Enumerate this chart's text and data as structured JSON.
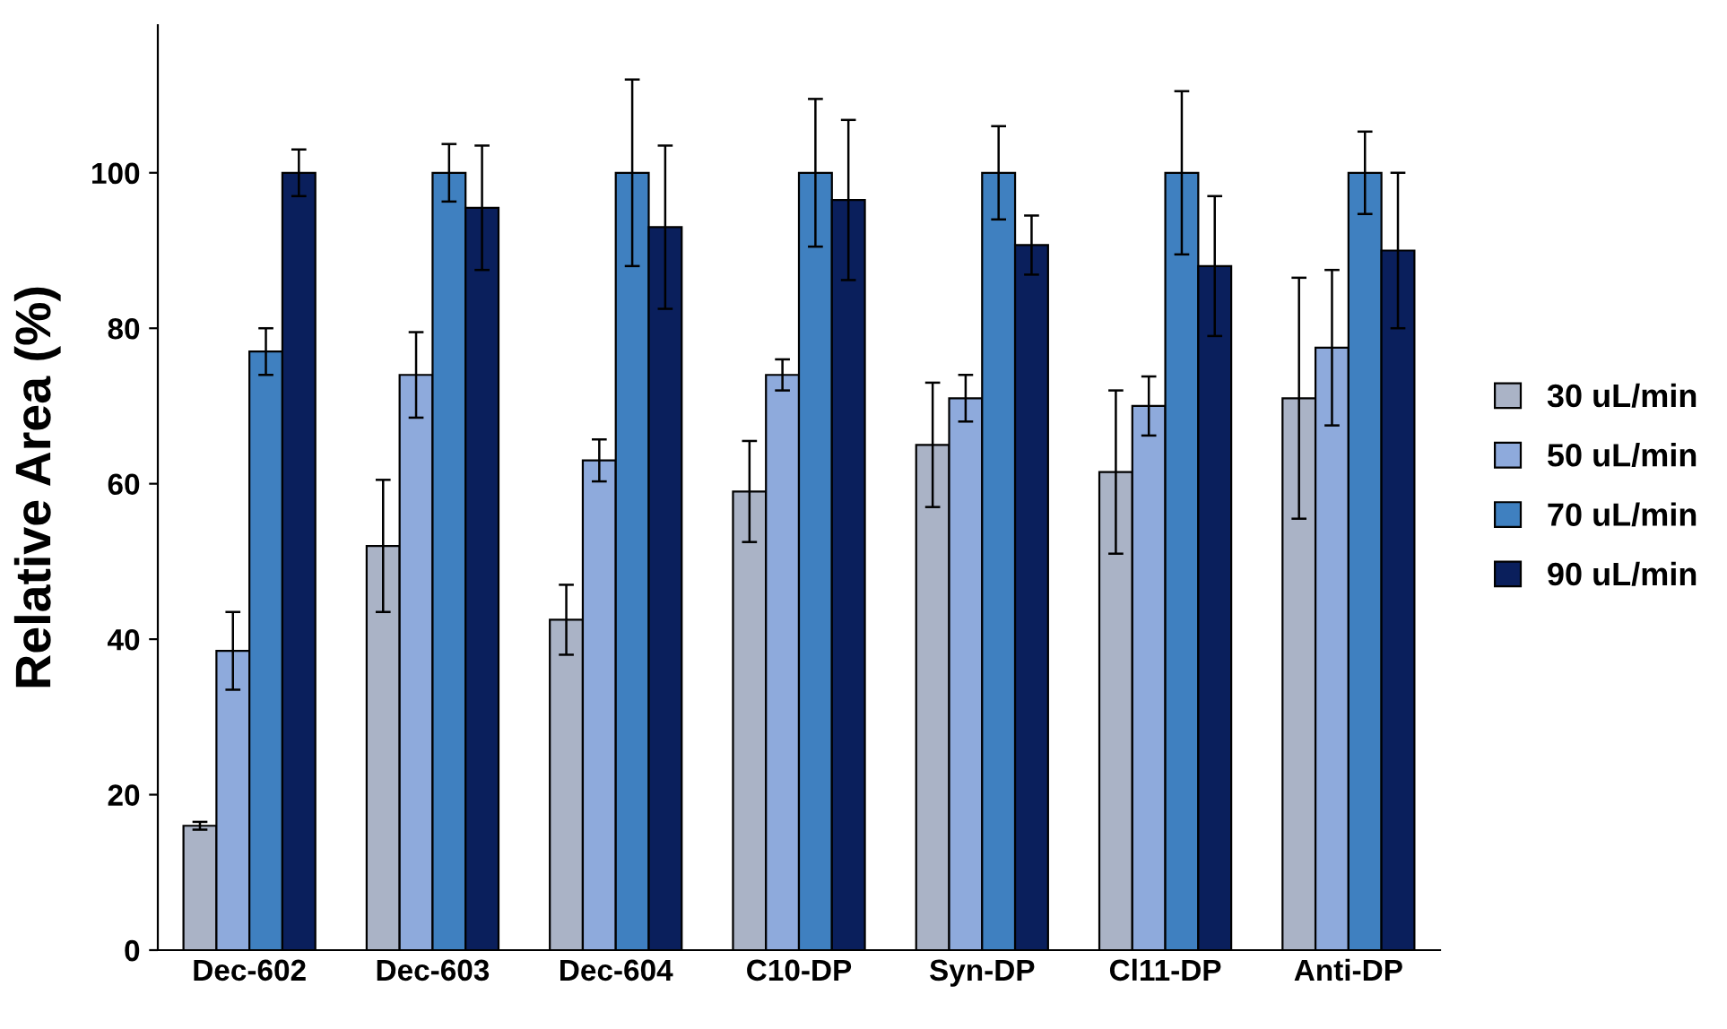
{
  "chart_data": {
    "type": "bar",
    "ylabel": "Relative Area (%)",
    "categories": [
      "Dec-602",
      "Dec-603",
      "Dec-604",
      "C10-DP",
      "Syn-DP",
      "Cl11-DP",
      "Anti-DP"
    ],
    "series": [
      {
        "name": "30 uL/min",
        "color": "#aab3c6",
        "values": [
          16,
          52,
          42.5,
          59,
          65,
          61.5,
          71
        ],
        "errors": [
          0.5,
          8.5,
          4.5,
          6.5,
          8,
          10.5,
          15.5
        ]
      },
      {
        "name": "50 uL/min",
        "color": "#8eaadc",
        "values": [
          38.5,
          74,
          63,
          74,
          71,
          70,
          77.5
        ],
        "errors": [
          5,
          5.5,
          2.7,
          2,
          3,
          3.8,
          10
        ]
      },
      {
        "name": "70 uL/min",
        "color": "#3f80c0",
        "values": [
          77,
          100,
          100,
          100,
          100,
          100,
          100
        ],
        "errors": [
          3,
          3.7,
          12,
          9.5,
          6,
          10.5,
          5.3
        ]
      },
      {
        "name": "90 uL/min",
        "color": "#0a1f5c",
        "values": [
          100,
          95.5,
          93,
          96.5,
          90.7,
          88,
          90
        ],
        "errors": [
          3,
          8,
          10.5,
          10.3,
          3.8,
          9,
          10
        ]
      }
    ],
    "ylim": [
      0,
      119
    ],
    "yticks": [
      0,
      20,
      40,
      60,
      80,
      100
    ],
    "grid": false,
    "legend": "right"
  }
}
